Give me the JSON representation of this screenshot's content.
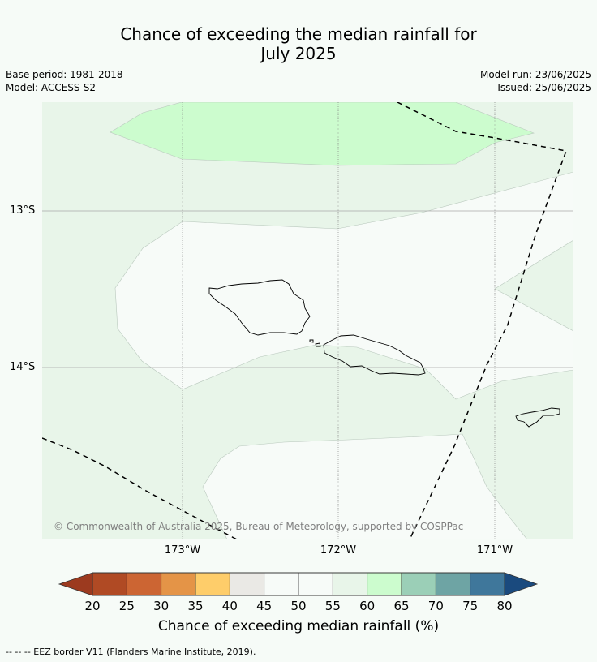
{
  "header": {
    "title_line1": "Chance of exceeding the median rainfall for",
    "title_line2": "July 2025",
    "base_period": "Base period: 1981-2018",
    "model": "Model: ACCESS-S2",
    "model_run": "Model run: 23/06/2025",
    "issued": "Issued: 25/06/2025"
  },
  "map": {
    "lat_labels": [
      "13°S",
      "14°S"
    ],
    "lon_labels": [
      "173°W",
      "172°W",
      "171°W"
    ],
    "copyright": "© Commonwealth of Australia 2025, Bureau of Meteorology, supported by COSPPac"
  },
  "colorbar": {
    "ticks": [
      "20",
      "25",
      "30",
      "35",
      "40",
      "45",
      "50",
      "55",
      "60",
      "65",
      "70",
      "75",
      "80"
    ],
    "colors": [
      "#b04a24",
      "#cc6533",
      "#e49447",
      "#fecd6a",
      "#eae9e5",
      "#f7fbf8",
      "#f7fbf8",
      "#e8f5e9",
      "#ccfcce",
      "#9bcfb7",
      "#6ea4a4",
      "#3f779b"
    ],
    "low_color": "#9c3a1f",
    "high_color": "#1a4a7e",
    "label": "Chance of exceeding median rainfall (%)"
  },
  "footer": {
    "eez_legend": "--  --  -- EEZ border V11 (Flanders Marine Institute, 2019)."
  }
}
